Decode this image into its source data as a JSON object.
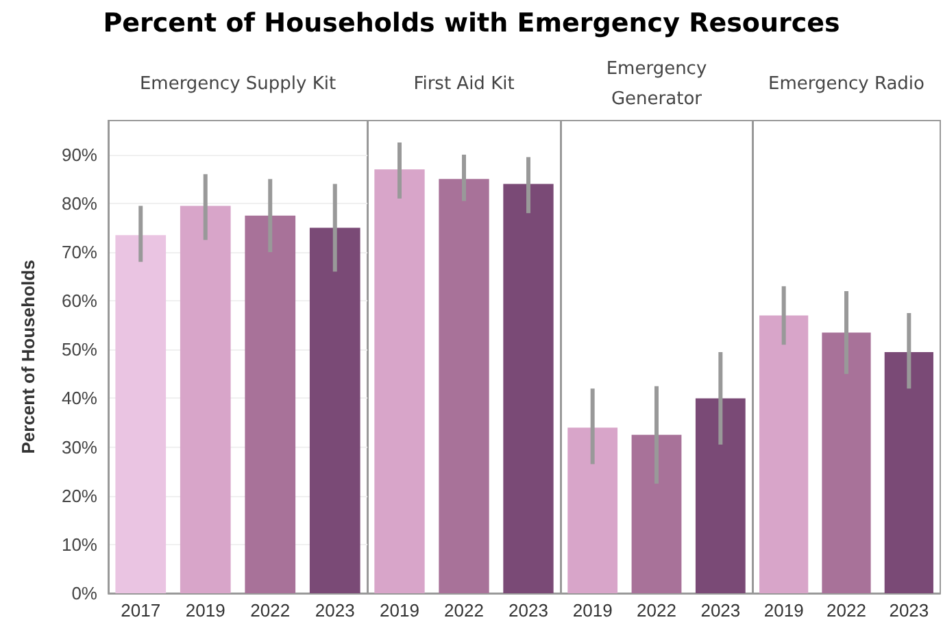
{
  "chart_data": [
    {
      "type": "bar",
      "title": "Percent of Households with Emergency Resources",
      "subtitle": "Emergency Supply Kit",
      "ylabel": "Percent of Households",
      "categories": [
        "2017",
        "2019",
        "2022",
        "2023"
      ],
      "values": [
        73.5,
        79.5,
        77.5,
        75
      ],
      "colors": [
        "#eac4e2",
        "#d8a5c9",
        "#a87299",
        "#7a4a76"
      ],
      "errors": [
        [
          68,
          79.5
        ],
        [
          72.5,
          86
        ],
        [
          70,
          85
        ],
        [
          66,
          84
        ]
      ],
      "ylim": [
        0,
        97
      ],
      "yticks": [
        {
          "value": 0,
          "label": "0%"
        },
        {
          "value": 10,
          "label": "10%"
        },
        {
          "value": 20,
          "label": "20%"
        },
        {
          "value": 30,
          "label": "30%"
        },
        {
          "value": 40,
          "label": "40%"
        },
        {
          "value": 50,
          "label": "50%"
        },
        {
          "value": 60,
          "label": "60%"
        },
        {
          "value": 70,
          "label": "70%"
        },
        {
          "value": 80,
          "label": "80%"
        },
        {
          "value": 90,
          "label": "90%"
        }
      ],
      "grid": "y"
    },
    {
      "type": "bar",
      "subtitle": "First Aid Kit",
      "categories": [
        "2019",
        "2022",
        "2023"
      ],
      "values": [
        87,
        85,
        84
      ],
      "colors": [
        "#d8a5c9",
        "#a87299",
        "#7a4a76"
      ],
      "errors": [
        [
          81,
          92.5
        ],
        [
          80.5,
          90
        ],
        [
          78,
          89.5
        ]
      ],
      "ylim": [
        0,
        97
      ],
      "tick_labels": "x",
      "grid": "y"
    },
    {
      "type": "bar",
      "subtitle": "Emergency Generator",
      "categories": [
        "2019",
        "2022",
        "2023"
      ],
      "values": [
        34,
        32.5,
        40
      ],
      "colors": [
        "#d8a5c9",
        "#a87299",
        "#7a4a76"
      ],
      "errors": [
        [
          26.5,
          42
        ],
        [
          22.5,
          42.5
        ],
        [
          30.5,
          49.5
        ]
      ],
      "ylim": [
        0,
        97
      ],
      "tick_labels": "x",
      "grid": "y"
    },
    {
      "type": "bar",
      "subtitle": "Emergency Radio",
      "categories": [
        "2019",
        "2022",
        "2023"
      ],
      "values": [
        57,
        53.5,
        49.5
      ],
      "colors": [
        "#d8a5c9",
        "#a87299",
        "#7a4a76"
      ],
      "errors": [
        [
          51,
          63
        ],
        [
          45,
          62
        ],
        [
          42,
          57.5
        ]
      ],
      "ylim": [
        0,
        97
      ],
      "tick_labels": "x",
      "grid": "y"
    }
  ]
}
